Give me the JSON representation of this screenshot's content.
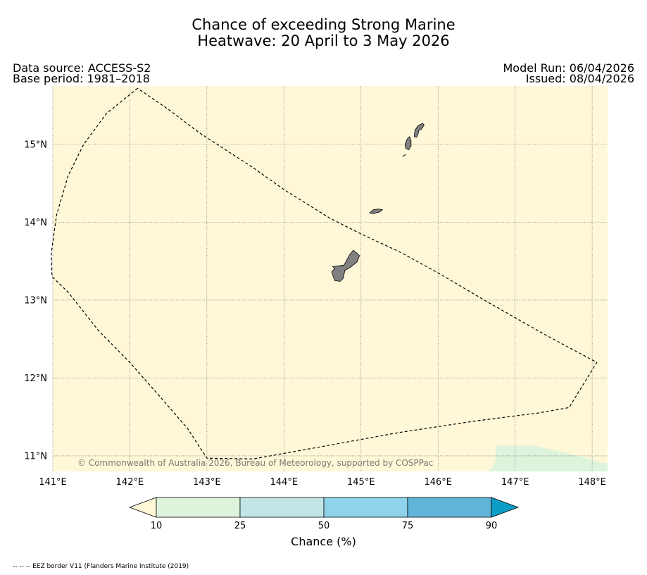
{
  "title_line1": "Chance of exceeding Strong Marine",
  "title_line2": "Heatwave: 20 April to 3 May 2026",
  "data_source": "Data source: ACCESS-S2",
  "base_period": "Base period: 1981–2018",
  "model_run": "Model Run: 06/04/2026",
  "issued": "Issued: 08/04/2026",
  "copyright": "© Commonwealth of Australia 2026, Bureau of Meteorology, supported by COSPPac",
  "map": {
    "lon_range": [
      141,
      148.2
    ],
    "lat_range": [
      10.8,
      15.75
    ],
    "lon_ticks": [
      141,
      142,
      143,
      144,
      145,
      146,
      147,
      148
    ],
    "lon_labels": [
      "141°E",
      "142°E",
      "143°E",
      "144°E",
      "145°E",
      "146°E",
      "147°E",
      "148°E"
    ],
    "lat_ticks": [
      11,
      12,
      13,
      14,
      15
    ],
    "lat_labels": [
      "11°N",
      "12°N",
      "13°N",
      "14°N",
      "15°N"
    ],
    "background_color": "#fef8d8",
    "land_color": "#808080",
    "low_chance_region_color": "#ddf3dc",
    "eez_boundary": [
      [
        142.1,
        15.72
      ],
      [
        141.7,
        15.4
      ],
      [
        141.4,
        15.0
      ],
      [
        141.2,
        14.6
      ],
      [
        141.05,
        14.1
      ],
      [
        140.98,
        13.6
      ],
      [
        140.99,
        13.3
      ],
      [
        141.2,
        13.1
      ],
      [
        141.6,
        12.6
      ],
      [
        142.0,
        12.2
      ],
      [
        142.4,
        11.75
      ],
      [
        142.75,
        11.35
      ],
      [
        143.0,
        10.97
      ],
      [
        143.6,
        10.96
      ],
      [
        144.5,
        11.12
      ],
      [
        145.5,
        11.3
      ],
      [
        146.5,
        11.45
      ],
      [
        147.3,
        11.55
      ],
      [
        147.7,
        11.62
      ],
      [
        148.06,
        12.2
      ],
      [
        147.4,
        12.55
      ],
      [
        146.6,
        13.0
      ],
      [
        146.0,
        13.35
      ],
      [
        145.5,
        13.62
      ],
      [
        145.0,
        13.85
      ],
      [
        144.6,
        14.05
      ],
      [
        144.0,
        14.42
      ],
      [
        143.6,
        14.7
      ],
      [
        142.9,
        15.15
      ],
      [
        142.5,
        15.45
      ],
      [
        142.1,
        15.72
      ]
    ],
    "islands": [
      {
        "name": "Guam",
        "coords": [
          [
            144.63,
            13.43
          ],
          [
            144.78,
            13.45
          ],
          [
            144.85,
            13.58
          ],
          [
            144.9,
            13.64
          ],
          [
            144.95,
            13.6
          ],
          [
            144.98,
            13.57
          ],
          [
            144.95,
            13.49
          ],
          [
            144.86,
            13.42
          ],
          [
            144.79,
            13.38
          ],
          [
            144.77,
            13.28
          ],
          [
            144.73,
            13.24
          ],
          [
            144.66,
            13.25
          ],
          [
            144.64,
            13.3
          ],
          [
            144.62,
            13.36
          ],
          [
            144.66,
            13.41
          ],
          [
            144.63,
            13.43
          ]
        ]
      },
      {
        "name": "Rota",
        "coords": [
          [
            145.11,
            14.12
          ],
          [
            145.16,
            14.16
          ],
          [
            145.22,
            14.17
          ],
          [
            145.28,
            14.16
          ],
          [
            145.24,
            14.13
          ],
          [
            145.19,
            14.12
          ],
          [
            145.16,
            14.11
          ],
          [
            145.11,
            14.12
          ]
        ]
      },
      {
        "name": "Tinian",
        "coords": [
          [
            145.57,
            15.0
          ],
          [
            145.6,
            15.07
          ],
          [
            145.63,
            15.1
          ],
          [
            145.65,
            15.05
          ],
          [
            145.65,
            14.98
          ],
          [
            145.62,
            14.93
          ],
          [
            145.58,
            14.95
          ],
          [
            145.57,
            15.0
          ]
        ]
      },
      {
        "name": "Saipan",
        "coords": [
          [
            145.69,
            15.1
          ],
          [
            145.7,
            15.18
          ],
          [
            145.74,
            15.24
          ],
          [
            145.8,
            15.27
          ],
          [
            145.82,
            15.25
          ],
          [
            145.78,
            15.19
          ],
          [
            145.75,
            15.18
          ],
          [
            145.74,
            15.13
          ],
          [
            145.72,
            15.09
          ],
          [
            145.69,
            15.1
          ]
        ]
      },
      {
        "name": "Aguijan",
        "coords": [
          [
            145.54,
            14.85
          ],
          [
            145.57,
            14.86
          ],
          [
            145.58,
            14.87
          ],
          [
            145.55,
            14.85
          ],
          [
            145.54,
            14.85
          ]
        ]
      }
    ],
    "low_chance_region": [
      [
        146.65,
        10.8
      ],
      [
        146.72,
        10.88
      ],
      [
        146.75,
        10.95
      ],
      [
        146.75,
        11.13
      ],
      [
        147.25,
        11.13
      ],
      [
        147.9,
        10.98
      ],
      [
        148.1,
        10.92
      ],
      [
        148.2,
        10.9
      ],
      [
        148.2,
        10.8
      ],
      [
        146.65,
        10.8
      ]
    ]
  },
  "colorbar": {
    "label": "Chance (%)",
    "ticks": [
      "10",
      "25",
      "50",
      "75",
      "90"
    ],
    "low_extend_color": "#fef8d8",
    "bins": [
      {
        "from": "10",
        "to": "25",
        "color": "#ddf3dc"
      },
      {
        "from": "25",
        "to": "50",
        "color": "#c2e6e5"
      },
      {
        "from": "50",
        "to": "75",
        "color": "#8fd3ea"
      },
      {
        "from": "75",
        "to": "90",
        "color": "#5fb4d7"
      }
    ],
    "high_extend_color": "#0c9dc6"
  },
  "footer": "-- -- -- EEZ border V11 (Flanders Marine Institute (2019)"
}
